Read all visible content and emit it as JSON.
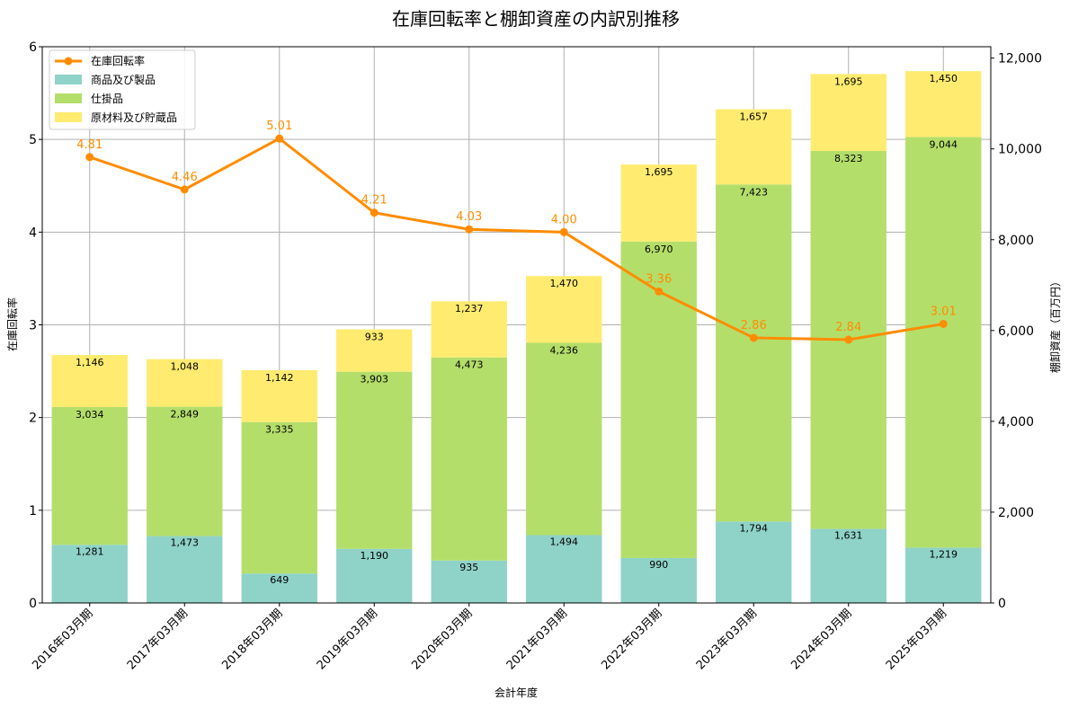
{
  "chart_data": {
    "type": "bar",
    "title": "在庫回転率と棚卸資産の内訳別推移",
    "xlabel": "会計年度",
    "ylabel_left": "在庫回転率",
    "ylabel_right": "棚卸資産（百万円）",
    "categories": [
      "2016年03月期",
      "2017年03月期",
      "2018年03月期",
      "2019年03月期",
      "2020年03月期",
      "2021年03月期",
      "2022年03月期",
      "2023年03月期",
      "2024年03月期",
      "2025年03月期"
    ],
    "ylim_left": [
      0,
      6
    ],
    "ylim_right": [
      0,
      12250
    ],
    "yticks_left": [
      "0",
      "1",
      "2",
      "3",
      "4",
      "5",
      "6"
    ],
    "yticks_right": [
      "0",
      "2,000",
      "4,000",
      "6,000",
      "8,000",
      "10,000",
      "12,000"
    ],
    "grid": true,
    "legend_position": "top-left",
    "stacked_series": [
      {
        "name": "商品及び製品",
        "color": "#8fd3c8",
        "values": [
          1281,
          1473,
          649,
          1190,
          935,
          1494,
          990,
          1794,
          1631,
          1219
        ],
        "labels": [
          "1,281",
          "1,473",
          "649",
          "1,190",
          "935",
          "1,494",
          "990",
          "1,794",
          "1,631",
          "1,219"
        ]
      },
      {
        "name": "仕掛品",
        "color": "#b4de6a",
        "values": [
          3034,
          2849,
          3335,
          3903,
          4473,
          4236,
          6970,
          7423,
          8323,
          9044
        ],
        "labels": [
          "3,034",
          "2,849",
          "3,335",
          "3,903",
          "4,473",
          "4,236",
          "6,970",
          "7,423",
          "8,323",
          "9,044"
        ]
      },
      {
        "name": "原材料及び貯蔵品",
        "color": "#ffeb70",
        "values": [
          1146,
          1048,
          1142,
          933,
          1237,
          1470,
          1695,
          1657,
          1695,
          1450
        ],
        "labels": [
          "1,146",
          "1,048",
          "1,142",
          "933",
          "1,237",
          "1,470",
          "1,695",
          "1,657",
          "1,695",
          "1,450"
        ]
      }
    ],
    "line_series": {
      "name": "在庫回転率",
      "color": "#ff8c00",
      "values": [
        4.81,
        4.46,
        5.01,
        4.21,
        4.03,
        4.0,
        3.36,
        2.86,
        2.84,
        3.01
      ],
      "labels": [
        "4.81",
        "4.46",
        "5.01",
        "4.21",
        "4.03",
        "4.00",
        "3.36",
        "2.86",
        "2.84",
        "3.01"
      ]
    }
  }
}
